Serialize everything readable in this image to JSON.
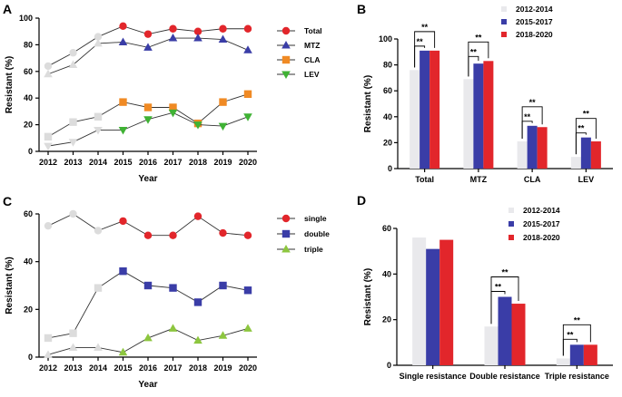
{
  "chart_data": [
    {
      "id": "A",
      "type": "line",
      "panel_label": "A",
      "xlabel": "Year",
      "ylabel": "Resistant (%)",
      "ylim": [
        0,
        100
      ],
      "yticks": [
        0,
        20,
        40,
        60,
        80,
        100
      ],
      "x": [
        "2012",
        "2013",
        "2014",
        "2015",
        "2016",
        "2017",
        "2018",
        "2019",
        "2020"
      ],
      "series": [
        {
          "name": "Total",
          "color": "#e2262b",
          "marker": "circle",
          "values": [
            64,
            74,
            86,
            94,
            88,
            92,
            90,
            92,
            92
          ]
        },
        {
          "name": "MTZ",
          "color": "#3a3da7",
          "marker": "triangle-up",
          "values": [
            58,
            65,
            81,
            82,
            78,
            85,
            85,
            84,
            76
          ]
        },
        {
          "name": "CLA",
          "color": "#f08a24",
          "marker": "square",
          "values": [
            11,
            22,
            26,
            37,
            33,
            33,
            21,
            37,
            43
          ]
        },
        {
          "name": "LEV",
          "color": "#3fb234",
          "marker": "triangle-down",
          "values": [
            4,
            7,
            16,
            16,
            24,
            29,
            20,
            19,
            26
          ]
        }
      ],
      "gray_first_points": 3
    },
    {
      "id": "B",
      "type": "bar",
      "panel_label": "B",
      "ylabel": "Resistant (%)",
      "ylim": [
        0,
        100
      ],
      "yticks": [
        0,
        20,
        40,
        60,
        80,
        100
      ],
      "categories": [
        "Total",
        "MTZ",
        "CLA",
        "LEV"
      ],
      "series": [
        {
          "name": "2012-2014",
          "color": "#e9e9ec",
          "values": [
            76,
            69,
            21,
            9
          ]
        },
        {
          "name": "2015-2017",
          "color": "#3a3da7",
          "values": [
            91,
            81,
            33,
            24
          ]
        },
        {
          "name": "2018-2020",
          "color": "#e2262b",
          "values": [
            91,
            83,
            32,
            21
          ]
        }
      ],
      "significance": [
        {
          "category": 0,
          "from": 0,
          "to": 1,
          "label": "**",
          "level": 1
        },
        {
          "category": 0,
          "from": 0,
          "to": 2,
          "label": "**",
          "level": 2
        },
        {
          "category": 1,
          "from": 0,
          "to": 1,
          "label": "**",
          "level": 1
        },
        {
          "category": 1,
          "from": 0,
          "to": 2,
          "label": "**",
          "level": 2
        },
        {
          "category": 2,
          "from": 0,
          "to": 1,
          "label": "**",
          "level": 1
        },
        {
          "category": 2,
          "from": 0,
          "to": 2,
          "label": "**",
          "level": 2
        },
        {
          "category": 3,
          "from": 0,
          "to": 1,
          "label": "**",
          "level": 1
        },
        {
          "category": 3,
          "from": 0,
          "to": 2,
          "label": "**",
          "level": 2
        }
      ]
    },
    {
      "id": "C",
      "type": "line",
      "panel_label": "C",
      "xlabel": "Year",
      "ylabel": "Resistant (%)",
      "ylim": [
        0,
        60
      ],
      "yticks": [
        0,
        20,
        40,
        60
      ],
      "x": [
        "2012",
        "2013",
        "2014",
        "2015",
        "2016",
        "2017",
        "2018",
        "2019",
        "2020"
      ],
      "series": [
        {
          "name": "single",
          "color": "#e2262b",
          "marker": "circle",
          "values": [
            55,
            60,
            53,
            57,
            51,
            51,
            59,
            52,
            51
          ]
        },
        {
          "name": "double",
          "color": "#3a3da7",
          "marker": "square",
          "values": [
            8,
            10,
            29,
            36,
            30,
            29,
            23,
            30,
            28
          ]
        },
        {
          "name": "triple",
          "color": "#8dc63f",
          "marker": "triangle-up",
          "values": [
            1,
            4,
            4,
            2,
            8,
            12,
            7,
            9,
            12
          ]
        }
      ],
      "gray_first_points": 3
    },
    {
      "id": "D",
      "type": "bar",
      "panel_label": "D",
      "ylabel": "Resistant (%)",
      "ylim": [
        0,
        60
      ],
      "yticks": [
        0,
        20,
        40,
        60
      ],
      "categories": [
        "Single resistance",
        "Double resistance",
        "Triple resistance"
      ],
      "series": [
        {
          "name": "2012-2014",
          "color": "#e9e9ec",
          "values": [
            56,
            17,
            3
          ]
        },
        {
          "name": "2015-2017",
          "color": "#3a3da7",
          "values": [
            51,
            30,
            9
          ]
        },
        {
          "name": "2018-2020",
          "color": "#e2262b",
          "values": [
            55,
            27,
            9
          ]
        }
      ],
      "significance": [
        {
          "category": 1,
          "from": 0,
          "to": 1,
          "label": "**",
          "level": 1
        },
        {
          "category": 1,
          "from": 0,
          "to": 2,
          "label": "**",
          "level": 2
        },
        {
          "category": 2,
          "from": 0,
          "to": 1,
          "label": "**",
          "level": 1
        },
        {
          "category": 2,
          "from": 0,
          "to": 2,
          "label": "**",
          "level": 2
        }
      ]
    }
  ]
}
